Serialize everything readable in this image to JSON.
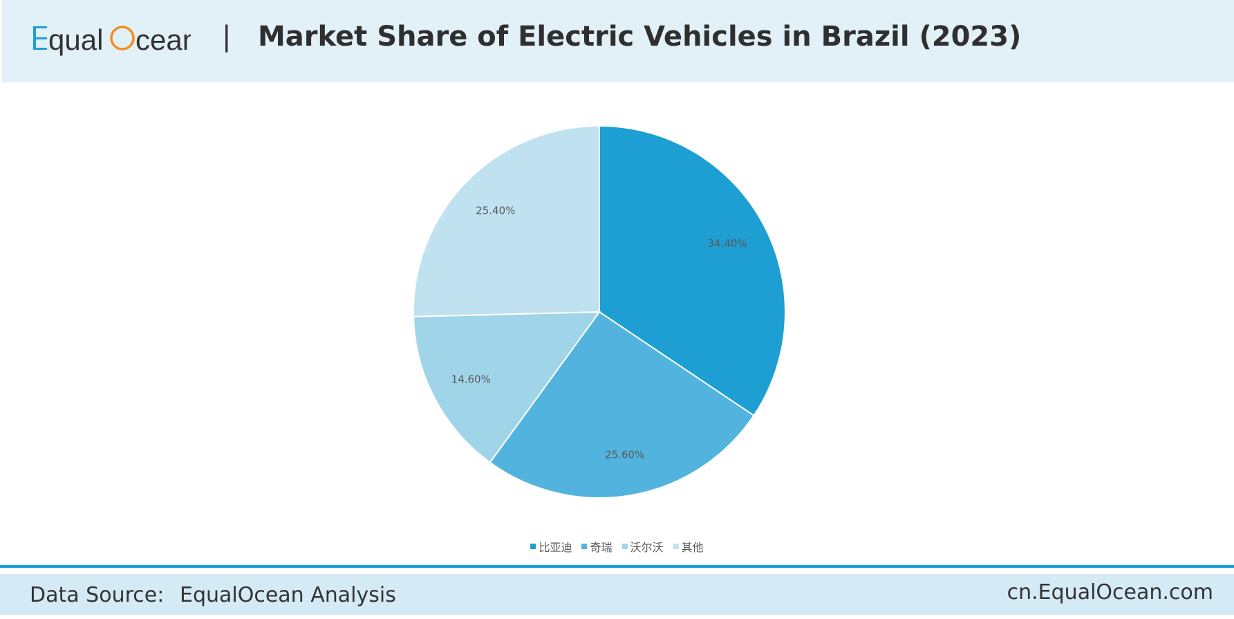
{
  "header": {
    "logo": {
      "text_part1": "Equal",
      "text_part2": "cean"
    },
    "separator": "|",
    "title": "Market Share of Electric Vehicles in Brazil (2023)"
  },
  "chart_data": {
    "type": "pie",
    "title": "Market Share of Electric Vehicles in Brazil (2023)",
    "categories": [
      "比亚迪",
      "奇瑞",
      "沃尔沃",
      "其他"
    ],
    "values": [
      34.4,
      25.6,
      14.6,
      25.4
    ],
    "value_labels": [
      "34.40%",
      "25.60%",
      "14.60%",
      "25.40%"
    ],
    "colors": [
      "#1e9fd4",
      "#52b4de",
      "#a0d4e8",
      "#c0e1ef"
    ],
    "legend_position": "bottom",
    "start_angle": "12 o'clock",
    "direction": "clockwise"
  },
  "footer": {
    "source_label": "Data Source:",
    "source_value": "EqualOcean Analysis",
    "site": "cn.EqualOcean.com"
  },
  "colors": {
    "header_bg": "#e2f0f7",
    "footer_bg": "#d4eaf4",
    "divider": "#1c9ed4",
    "logo_blue": "#1c9ed4",
    "logo_orange": "#f28c1e"
  }
}
